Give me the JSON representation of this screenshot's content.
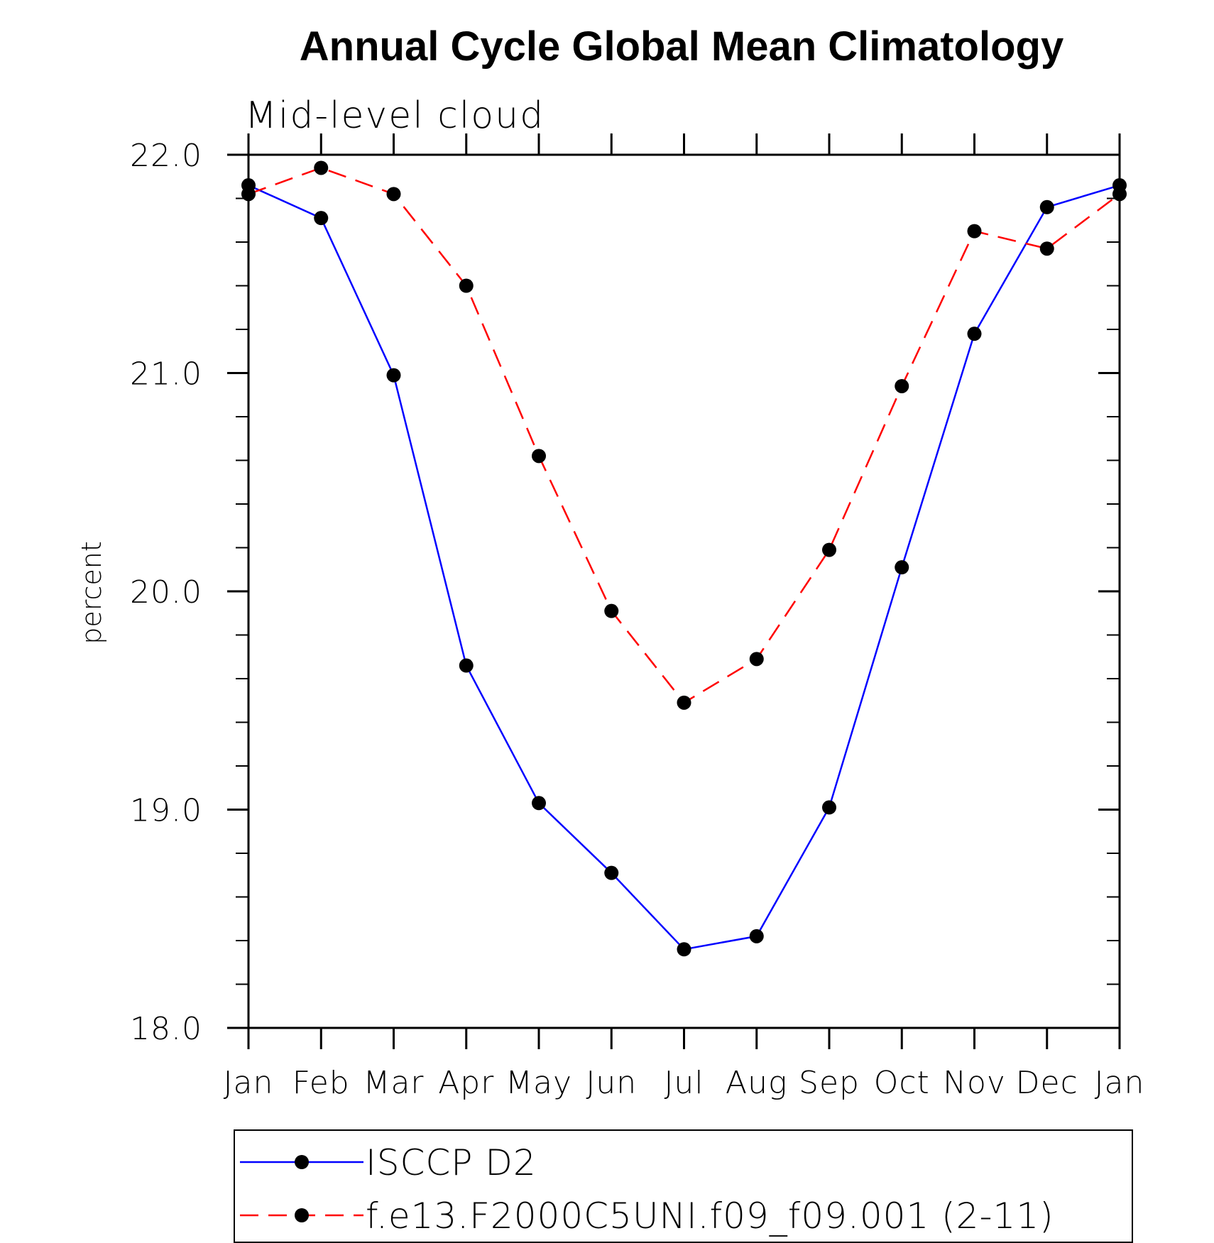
{
  "chart_data": {
    "type": "line",
    "title": "Annual Cycle Global Mean Climatology",
    "subtitle": "Mid-level cloud",
    "xlabel": "",
    "ylabel": "percent",
    "categories": [
      "Jan",
      "Feb",
      "Mar",
      "Apr",
      "May",
      "Jun",
      "Jul",
      "Aug",
      "Sep",
      "Oct",
      "Nov",
      "Dec",
      "Jan"
    ],
    "ylim": [
      18.0,
      22.0
    ],
    "yticks": [
      "18.0",
      "19.0",
      "20.0",
      "21.0",
      "22.0"
    ],
    "grid": false,
    "legend_position": "bottom",
    "series": [
      {
        "name": "ISCCP D2",
        "color": "#0000ff",
        "line_style": "solid",
        "marker": "filled-circle",
        "values": [
          21.86,
          21.71,
          20.99,
          19.66,
          19.03,
          18.71,
          18.36,
          18.42,
          19.01,
          20.11,
          21.18,
          21.76,
          21.86
        ]
      },
      {
        "name": "f.e13.F2000C5UNI.f09_f09.001 (2-11)",
        "color": "#ff0000",
        "line_style": "dashed",
        "marker": "filled-circle",
        "values": [
          21.82,
          21.94,
          21.82,
          21.4,
          20.62,
          19.91,
          19.49,
          19.69,
          20.19,
          20.94,
          21.65,
          21.57,
          21.82
        ]
      }
    ]
  }
}
